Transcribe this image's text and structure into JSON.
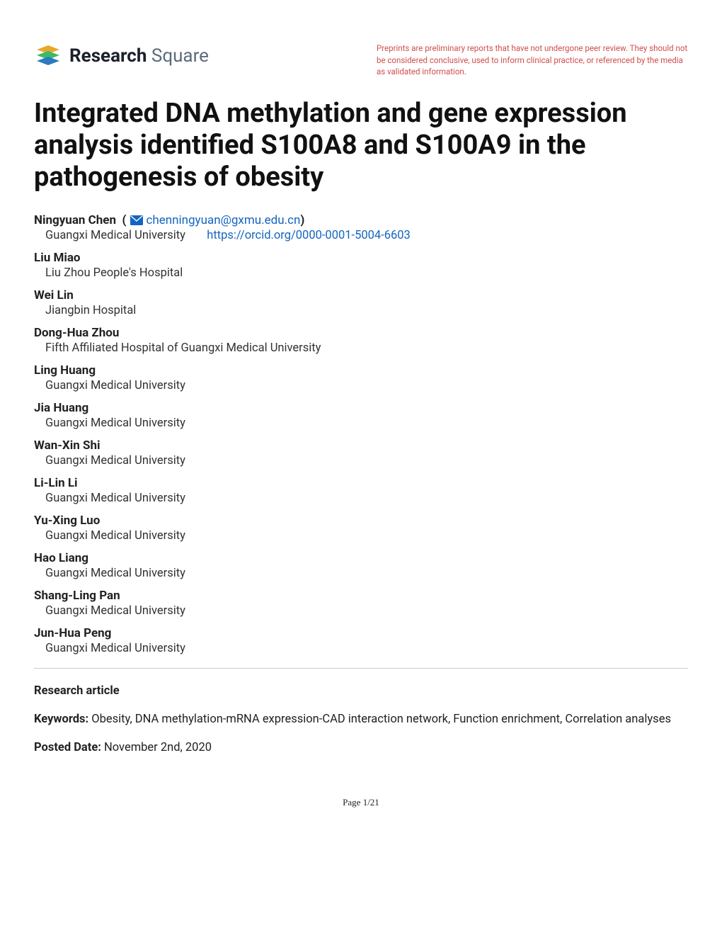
{
  "logo": {
    "brand": "Research",
    "brand2": "Square"
  },
  "disclaimer": "Preprints are preliminary reports that have not undergone peer review. They should not be considered conclusive, used to inform clinical practice, or referenced by the media as validated information.",
  "title": "Integrated DNA methylation and gene expression analysis identified S100A8 and S100A9 in the pathogenesis of obesity",
  "authors": [
    {
      "name": "Ningyuan Chen",
      "email": "chenningyuan@gxmu.edu.cn",
      "affiliation": "Guangxi Medical University",
      "orcid": "https://orcid.org/0000-0001-5004-6603",
      "corresponding": true
    },
    {
      "name": "Liu Miao",
      "affiliation": "Liu Zhou People's Hospital"
    },
    {
      "name": "Wei Lin",
      "affiliation": "Jiangbin Hospital"
    },
    {
      "name": "Dong-Hua Zhou",
      "affiliation": "Fifth Affiliated Hospital of Guangxi Medical University"
    },
    {
      "name": "Ling Huang",
      "affiliation": "Guangxi Medical University"
    },
    {
      "name": "Jia Huang",
      "affiliation": "Guangxi Medical University"
    },
    {
      "name": "Wan-Xin Shi",
      "affiliation": "Guangxi Medical University"
    },
    {
      "name": "Li-Lin Li",
      "affiliation": "Guangxi Medical University"
    },
    {
      "name": "Yu-Xing Luo",
      "affiliation": "Guangxi Medical University"
    },
    {
      "name": "Hao Liang",
      "affiliation": "Guangxi Medical University"
    },
    {
      "name": "Shang-Ling Pan",
      "affiliation": "Guangxi Medical University"
    },
    {
      "name": "Jun-Hua Peng",
      "affiliation": "Guangxi Medical University"
    }
  ],
  "article_type": "Research article",
  "keywords_label": "Keywords:",
  "keywords": "Obesity, DNA methylation-mRNA expression-CAD interaction network, Function enrichment, Correlation analyses",
  "posted_label": "Posted Date:",
  "posted_date": "November 2nd, 2020",
  "page_footer": "Page 1/21",
  "colors": {
    "link": "#1565c0",
    "disclaimer": "#d14d4d",
    "logo_green": "#3fb968",
    "logo_yellow": "#e7a82e",
    "logo_blue": "#2a7bbf"
  }
}
